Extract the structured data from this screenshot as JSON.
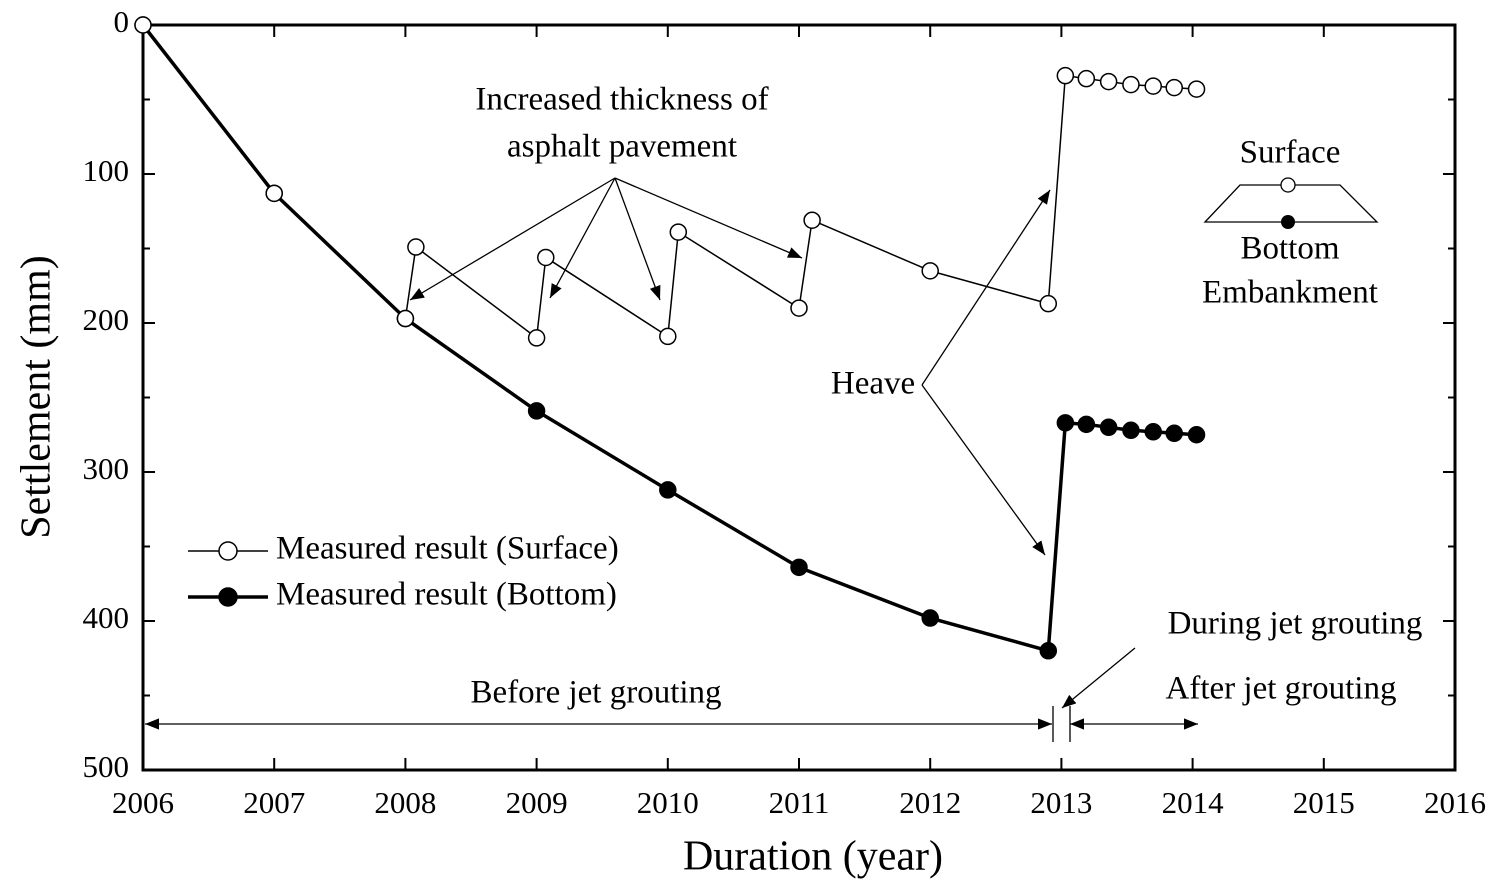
{
  "chart_data": {
    "type": "line",
    "xlabel": "Duration (year)",
    "ylabel": "Settlement (mm)",
    "xlim": [
      2006,
      2016
    ],
    "xticks": [
      2006,
      2007,
      2008,
      2009,
      2010,
      2011,
      2012,
      2013,
      2014,
      2015,
      2016
    ],
    "ylim": [
      0,
      500
    ],
    "yticks": [
      0,
      100,
      200,
      300,
      400,
      500
    ],
    "yminorticks": [
      50,
      150,
      250,
      350,
      450
    ],
    "y_inverted": true,
    "legend": "lower left",
    "series": [
      {
        "name": "Measured result (Bottom)",
        "color": "#000000",
        "marker": "filled",
        "x": [
          2006,
          2007,
          2008,
          2009,
          2010,
          2011,
          2012,
          2012.9,
          2013.03,
          2013.19,
          2013.36,
          2013.53,
          2013.7,
          2013.86,
          2014.03
        ],
        "values": [
          0,
          113,
          197,
          259,
          312,
          364,
          398,
          420,
          267,
          268,
          270,
          272,
          273,
          274,
          275
        ]
      },
      {
        "name": "Measured result (Surface)",
        "color": "#000000",
        "marker": "open",
        "x": [
          2006,
          2007,
          2008,
          2008.08,
          2009,
          2009.07,
          2010,
          2010.08,
          2011,
          2011.1,
          2012,
          2012.9,
          2013.03,
          2013.19,
          2013.36,
          2013.53,
          2013.7,
          2013.86,
          2014.03
        ],
        "values": [
          0,
          113,
          197,
          149,
          210,
          156,
          209,
          139,
          190,
          131,
          165,
          187,
          34,
          36,
          38,
          40,
          41,
          42,
          43
        ]
      }
    ],
    "annotations": {
      "pavement": [
        "Increased thickness of",
        "asphalt pavement"
      ],
      "heave": "Heave",
      "before": "Before jet grouting",
      "during": "During jet grouting",
      "after": "After jet grouting",
      "inset_surface": "Surface",
      "inset_bottom": "Bottom",
      "inset_embankment": "Embankment"
    }
  }
}
